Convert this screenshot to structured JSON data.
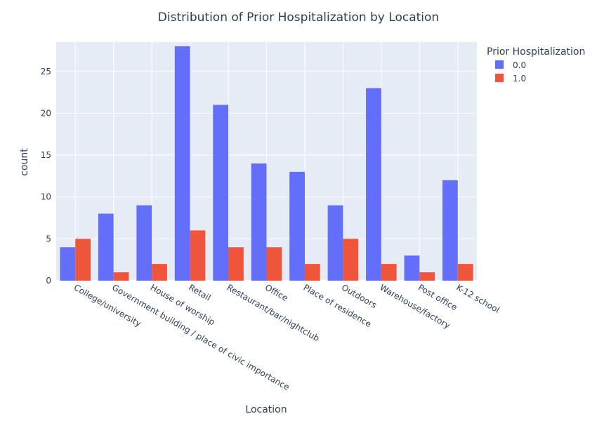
{
  "chart_data": {
    "type": "bar",
    "title": "Distribution of Prior Hospitalization by Location",
    "xlabel": "Location",
    "ylabel": "count",
    "ylim": [
      0,
      28.5
    ],
    "yticks": [
      0,
      5,
      10,
      15,
      20,
      25
    ],
    "grid": true,
    "legend_placement": "top-right",
    "legend_title": "Prior Hospitalization",
    "categories": [
      "College/university",
      "Government building /  place of civic importance",
      "House of worship",
      "Retail",
      "Restaurant/bar/nightclub",
      "Office",
      "Place of residence",
      "Outdoors",
      "Warehouse/factory",
      "Post office",
      "K-12 school"
    ],
    "series": [
      {
        "name": "0.0",
        "color": "#636efa",
        "values": [
          4,
          8,
          9,
          28,
          21,
          14,
          13,
          9,
          23,
          3,
          12
        ]
      },
      {
        "name": "1.0",
        "color": "#ef553b",
        "values": [
          5,
          1,
          2,
          6,
          4,
          4,
          2,
          5,
          2,
          1,
          2
        ]
      }
    ],
    "plot_background": "#e5ecf6",
    "gridline_color": "#ffffff"
  }
}
